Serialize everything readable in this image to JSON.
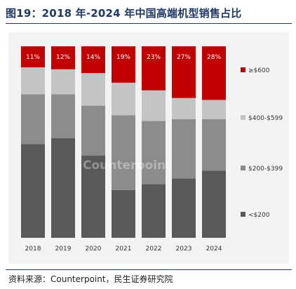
{
  "header": {
    "title": "图19：2018 年-2024 年中国高端机型销售占比"
  },
  "footer": {
    "source": "资料来源：Counterpoint，民生证券研究院"
  },
  "watermark": "Counterpoint",
  "chart_data": {
    "type": "bar",
    "stacked": true,
    "normalized": true,
    "title": "",
    "xlabel": "",
    "ylabel": "",
    "ylim": [
      0,
      100
    ],
    "grid": false,
    "legend_position": "right",
    "categories": [
      "2018",
      "2019",
      "2020",
      "2021",
      "2022",
      "2023",
      "2024"
    ],
    "series": [
      {
        "name": "<$200",
        "color": "#595959",
        "values": [
          49,
          52,
          43,
          25,
          28,
          31,
          35
        ]
      },
      {
        "name": "$200-$399",
        "color": "#8c8c8c",
        "values": [
          26,
          23,
          26,
          39,
          33,
          31,
          27
        ]
      },
      {
        "name": "$400-$599",
        "color": "#c4c4c4",
        "values": [
          14,
          13,
          17,
          17,
          16,
          11,
          10
        ]
      },
      {
        "name": "≥$600",
        "color": "#c00000",
        "values": [
          11,
          12,
          14,
          19,
          23,
          27,
          28
        ]
      }
    ],
    "data_labels": [
      "11%",
      "12%",
      "14%",
      "19%",
      "23%",
      "27%",
      "28%"
    ]
  }
}
